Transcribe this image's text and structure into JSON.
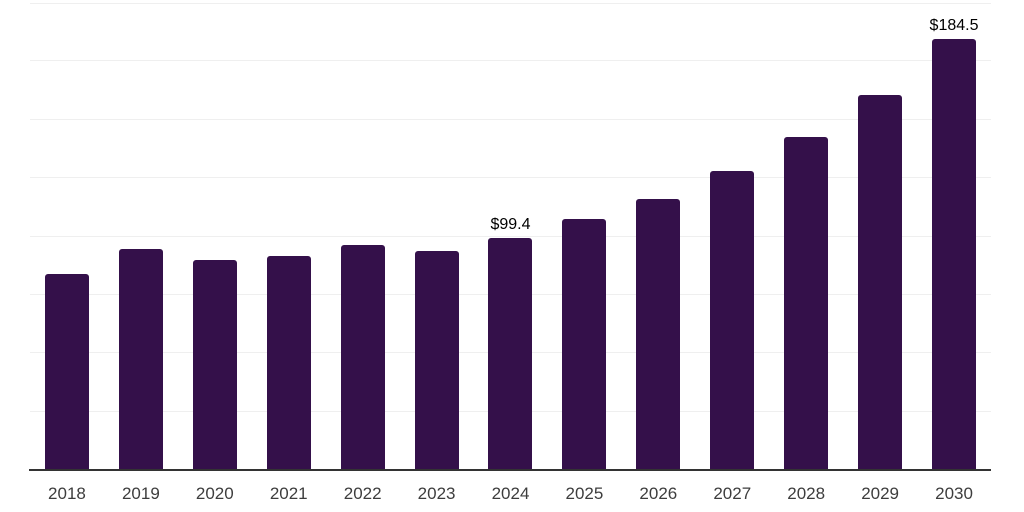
{
  "chart_data": {
    "type": "bar",
    "title": "",
    "xlabel": "",
    "ylabel": "",
    "categories": [
      "2018",
      "2019",
      "2020",
      "2021",
      "2022",
      "2023",
      "2024",
      "2025",
      "2026",
      "2027",
      "2028",
      "2029",
      "2030"
    ],
    "values": [
      84,
      94.7,
      89.9,
      91.7,
      96.5,
      94,
      99.4,
      107.3,
      116.1,
      127.9,
      142.6,
      160.6,
      184.5
    ],
    "data_labels": [
      "",
      "",
      "",
      "",
      "",
      "",
      "$99.4",
      "",
      "",
      "",
      "",
      "",
      "$184.5"
    ],
    "ylim": [
      0,
      200
    ],
    "grid_step": 25,
    "grid": "horizontal-only",
    "legend": "none",
    "colors": {
      "bar": "#34104A",
      "gridline": "#efefef",
      "axis_line": "#333333",
      "tick_label": "#3d3d3d",
      "data_label": "#000000",
      "background": "#ffffff"
    }
  }
}
